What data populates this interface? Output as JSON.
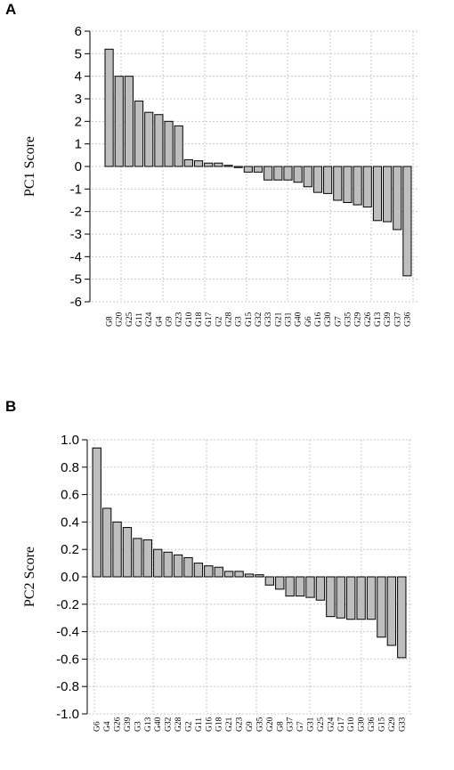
{
  "chart_data": [
    {
      "panel": "A",
      "type": "bar",
      "ylabel": "PC1 Score",
      "ylim": [
        -6,
        6
      ],
      "yticks": [
        6,
        5,
        4,
        3,
        2,
        1,
        0,
        -1,
        -2,
        -3,
        -4,
        -5,
        -6
      ],
      "grid": true,
      "categories": [
        "G8",
        "G20",
        "G25",
        "G11",
        "G24",
        "G4",
        "G9",
        "G23",
        "G10",
        "G18",
        "G17",
        "G2",
        "G28",
        "G3",
        "G15",
        "G32",
        "G33",
        "G21",
        "G31",
        "G40",
        "G6",
        "G16",
        "G30",
        "G7",
        "G35",
        "G29",
        "G26",
        "G13",
        "G39",
        "G37",
        "G36"
      ],
      "values": [
        5.2,
        4.0,
        4.0,
        2.9,
        2.4,
        2.3,
        2.0,
        1.8,
        0.3,
        0.25,
        0.15,
        0.15,
        0.05,
        -0.05,
        -0.25,
        -0.25,
        -0.6,
        -0.6,
        -0.6,
        -0.7,
        -0.9,
        -1.15,
        -1.2,
        -1.5,
        -1.6,
        -1.7,
        -1.8,
        -2.4,
        -2.45,
        -2.8,
        -4.85
      ]
    },
    {
      "panel": "B",
      "type": "bar",
      "ylabel": "PC2 Score",
      "ylim": [
        -1.0,
        1.0
      ],
      "yticks": [
        "1.0",
        "0.8",
        "0.6",
        "0.4",
        "0.2",
        "0.0",
        "-0.2",
        "-0.4",
        "-0.6",
        "-0.8",
        "-1.0"
      ],
      "grid": true,
      "categories": [
        "G6",
        "G4",
        "G26",
        "G39",
        "G3",
        "G13",
        "G40",
        "G32",
        "G28",
        "G2",
        "G11",
        "G16",
        "G18",
        "G21",
        "G23",
        "G9",
        "G35",
        "G20",
        "G8",
        "G37",
        "G7",
        "G31",
        "G25",
        "G24",
        "G17",
        "G10",
        "G30",
        "G36",
        "G15",
        "G29",
        "G33"
      ],
      "values": [
        0.94,
        0.5,
        0.4,
        0.36,
        0.28,
        0.27,
        0.2,
        0.18,
        0.16,
        0.14,
        0.1,
        0.08,
        0.07,
        0.04,
        0.04,
        0.02,
        0.015,
        -0.06,
        -0.09,
        -0.14,
        -0.14,
        -0.15,
        -0.17,
        -0.29,
        -0.3,
        -0.31,
        -0.31,
        -0.31,
        -0.44,
        -0.5,
        -0.59
      ]
    }
  ]
}
